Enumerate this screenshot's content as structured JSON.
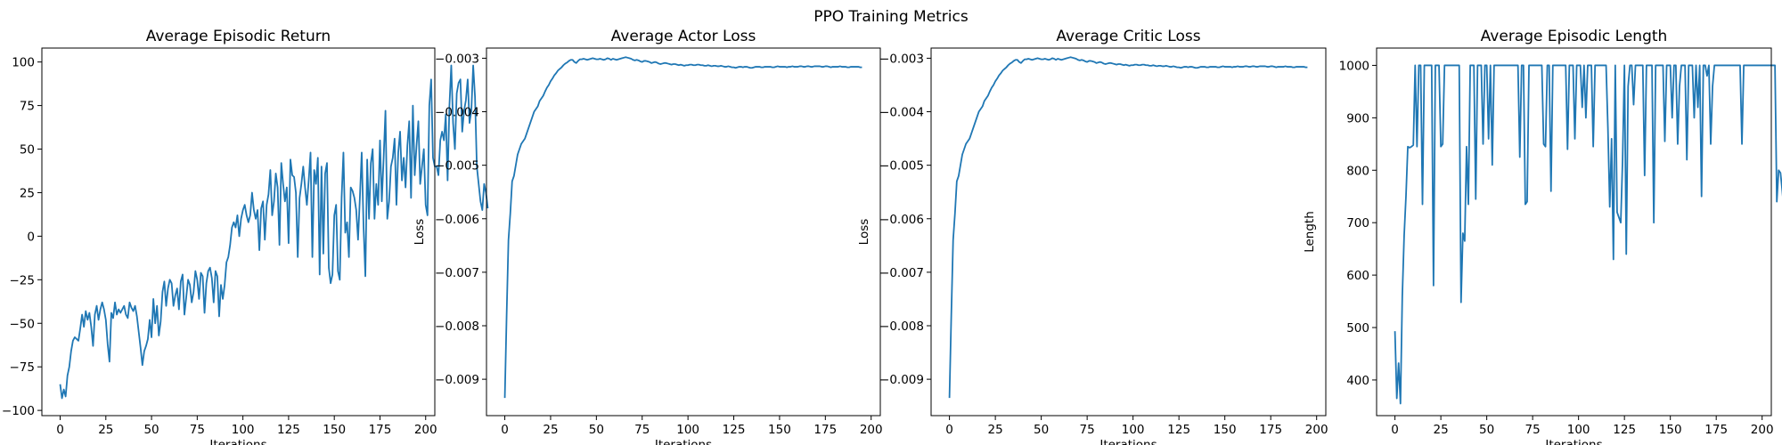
{
  "figure": {
    "title": "PPO Training Metrics"
  },
  "colors": {
    "line": "#1f77b4",
    "axes": "#000000",
    "background": "#ffffff"
  },
  "chart_data": [
    {
      "type": "line",
      "title": "Average Episodic Return",
      "xlabel": "Iterations",
      "ylabel": "",
      "xlim": [
        -10,
        205
      ],
      "ylim": [
        -103,
        108
      ],
      "grid": false,
      "x_ticks": [
        0,
        25,
        50,
        75,
        100,
        125,
        150,
        175,
        200
      ],
      "y_ticks": [
        -100,
        -75,
        -50,
        -25,
        0,
        25,
        50,
        75,
        100
      ],
      "y_tick_labels": [
        "−100",
        "−75",
        "−50",
        "−25",
        "0",
        "25",
        "50",
        "75",
        "100"
      ],
      "x_start": 0,
      "x_step": 1,
      "values": [
        -85,
        -93,
        -88,
        -92,
        -80,
        -75,
        -66,
        -60,
        -58,
        -59,
        -60,
        -53,
        -45,
        -52,
        -43,
        -48,
        -44,
        -52,
        -63,
        -45,
        -40,
        -48,
        -42,
        -38,
        -42,
        -48,
        -62,
        -72,
        -44,
        -47,
        -38,
        -45,
        -42,
        -44,
        -42,
        -40,
        -45,
        -47,
        -38,
        -41,
        -43,
        -40,
        -46,
        -55,
        -64,
        -74,
        -66,
        -63,
        -59,
        -48,
        -58,
        -36,
        -50,
        -40,
        -57,
        -49,
        -32,
        -26,
        -40,
        -30,
        -25,
        -27,
        -40,
        -34,
        -30,
        -42,
        -26,
        -22,
        -45,
        -35,
        -25,
        -28,
        -38,
        -32,
        -20,
        -25,
        -36,
        -21,
        -23,
        -44,
        -27,
        -20,
        -18,
        -24,
        -38,
        -20,
        -23,
        -46,
        -28,
        -36,
        -28,
        -15,
        -12,
        -5,
        5,
        8,
        5,
        12,
        0,
        10,
        15,
        18,
        12,
        8,
        12,
        25,
        15,
        10,
        15,
        -8,
        16,
        20,
        -2,
        18,
        24,
        38,
        12,
        20,
        36,
        28,
        -5,
        42,
        30,
        20,
        28,
        -4,
        44,
        35,
        34,
        25,
        -12,
        22,
        30,
        40,
        28,
        18,
        32,
        48,
        -12,
        38,
        30,
        45,
        -22,
        40,
        -10,
        36,
        42,
        -18,
        -27,
        -22,
        12,
        18,
        -20,
        -25,
        22,
        48,
        2,
        8,
        -12,
        28,
        26,
        22,
        15,
        -2,
        22,
        48,
        6,
        -23,
        44,
        10,
        42,
        50,
        10,
        30,
        18,
        55,
        20,
        45,
        72,
        10,
        20,
        40,
        45,
        56,
        18,
        48,
        60,
        32,
        45,
        28,
        52,
        66,
        22,
        75,
        35,
        52,
        66,
        30,
        40,
        50,
        18,
        12,
        75,
        90,
        45,
        40,
        40,
        35,
        55,
        60,
        55,
        70,
        32,
        75,
        98,
        65,
        50,
        82,
        88,
        90,
        60,
        72,
        78,
        90,
        65,
        72,
        98,
        80,
        40,
        30,
        20,
        15,
        30,
        25,
        16
      ]
    },
    {
      "type": "line",
      "title": "Average Actor Loss",
      "xlabel": "Iterations",
      "ylabel": "Loss",
      "xlim": [
        -10,
        205
      ],
      "ylim": [
        -0.00968,
        -0.00281
      ],
      "grid": false,
      "x_ticks": [
        0,
        25,
        50,
        75,
        100,
        125,
        150,
        175,
        200
      ],
      "y_ticks": [
        -0.009,
        -0.008,
        -0.007,
        -0.006,
        -0.005,
        -0.004,
        -0.003
      ],
      "y_tick_labels": [
        "−0.009",
        "−0.008",
        "−0.007",
        "−0.006",
        "−0.005",
        "−0.004",
        "−0.003"
      ],
      "x_start": 0,
      "x_step": 1,
      "values": [
        -0.00935,
        -0.0078,
        -0.0064,
        -0.0059,
        -0.0053,
        -0.0052,
        -0.005,
        -0.0048,
        -0.0047,
        -0.0046,
        -0.00455,
        -0.0045,
        -0.0044,
        -0.0043,
        -0.0042,
        -0.0041,
        -0.004,
        -0.00395,
        -0.0039,
        -0.0038,
        -0.00375,
        -0.0037,
        -0.00362,
        -0.00355,
        -0.0035,
        -0.00343,
        -0.00338,
        -0.00332,
        -0.00328,
        -0.00323,
        -0.0032,
        -0.00317,
        -0.00313,
        -0.0031,
        -0.00308,
        -0.00305,
        -0.00303,
        -0.00303,
        -0.00307,
        -0.00309,
        -0.00305,
        -0.00302,
        -0.00302,
        -0.00301,
        -0.00302,
        -0.00303,
        -0.00302,
        -0.00301,
        -0.003,
        -0.00301,
        -0.00302,
        -0.00302,
        -0.00301,
        -0.00302,
        -0.00303,
        -0.00302,
        -0.003,
        -0.00301,
        -0.00303,
        -0.00301,
        -0.00302,
        -0.00303,
        -0.00302,
        -0.00301,
        -0.003,
        -0.00299,
        -0.00298,
        -0.00299,
        -0.003,
        -0.00301,
        -0.00303,
        -0.00304,
        -0.00303,
        -0.00304,
        -0.00306,
        -0.00307,
        -0.00305,
        -0.00305,
        -0.00306,
        -0.00307,
        -0.00309,
        -0.00308,
        -0.00307,
        -0.00308,
        -0.0031,
        -0.00311,
        -0.0031,
        -0.00309,
        -0.00309,
        -0.0031,
        -0.00311,
        -0.00312,
        -0.00311,
        -0.00311,
        -0.00312,
        -0.00313,
        -0.00312,
        -0.00313,
        -0.00314,
        -0.00313,
        -0.00313,
        -0.00312,
        -0.00312,
        -0.00313,
        -0.00313,
        -0.00312,
        -0.00312,
        -0.00313,
        -0.00313,
        -0.00314,
        -0.00314,
        -0.00313,
        -0.00314,
        -0.00315,
        -0.00314,
        -0.00314,
        -0.00315,
        -0.00315,
        -0.00314,
        -0.00315,
        -0.00316,
        -0.00316,
        -0.00315,
        -0.00316,
        -0.00317,
        -0.00317,
        -0.00318,
        -0.00317,
        -0.00316,
        -0.00316,
        -0.00317,
        -0.00316,
        -0.00316,
        -0.00317,
        -0.00318,
        -0.00318,
        -0.00317,
        -0.00316,
        -0.00316,
        -0.00316,
        -0.00317,
        -0.00317,
        -0.00316,
        -0.00316,
        -0.00316,
        -0.00316,
        -0.00317,
        -0.00317,
        -0.00316,
        -0.00315,
        -0.00316,
        -0.00316,
        -0.00316,
        -0.00316,
        -0.00317,
        -0.00316,
        -0.00316,
        -0.00315,
        -0.00316,
        -0.00316,
        -0.00316,
        -0.00315,
        -0.00315,
        -0.00316,
        -0.00316,
        -0.00315,
        -0.00315,
        -0.00316,
        -0.00316,
        -0.00315,
        -0.00315,
        -0.00315,
        -0.00315,
        -0.00316,
        -0.00316,
        -0.00315,
        -0.00315,
        -0.00316,
        -0.00317,
        -0.00316,
        -0.00316,
        -0.00316,
        -0.00316,
        -0.00315,
        -0.00316,
        -0.00316,
        -0.00316,
        -0.00317,
        -0.00317,
        -0.00316,
        -0.00316,
        -0.00316,
        -0.00316,
        -0.00316,
        -0.00317,
        -0.00317
      ]
    },
    {
      "type": "line",
      "title": "Average Critic Loss",
      "xlabel": "Iterations",
      "ylabel": "Loss",
      "xlim": [
        -10,
        205
      ],
      "ylim": [
        -0.00968,
        -0.00281
      ],
      "grid": false,
      "x_ticks": [
        0,
        25,
        50,
        75,
        100,
        125,
        150,
        175,
        200
      ],
      "y_ticks": [
        -0.009,
        -0.008,
        -0.007,
        -0.006,
        -0.005,
        -0.004,
        -0.003
      ],
      "y_tick_labels": [
        "−0.009",
        "−0.008",
        "−0.007",
        "−0.006",
        "−0.005",
        "−0.004",
        "−0.003"
      ],
      "x_start": 0,
      "x_step": 1,
      "values": [
        -0.00935,
        -0.0078,
        -0.0064,
        -0.0059,
        -0.0053,
        -0.0052,
        -0.005,
        -0.0048,
        -0.0047,
        -0.0046,
        -0.00455,
        -0.0045,
        -0.0044,
        -0.0043,
        -0.0042,
        -0.0041,
        -0.004,
        -0.00395,
        -0.0039,
        -0.0038,
        -0.00375,
        -0.0037,
        -0.00362,
        -0.00355,
        -0.0035,
        -0.00343,
        -0.00338,
        -0.00332,
        -0.00328,
        -0.00323,
        -0.0032,
        -0.00317,
        -0.00313,
        -0.0031,
        -0.00308,
        -0.00305,
        -0.00303,
        -0.00303,
        -0.00307,
        -0.00309,
        -0.00305,
        -0.00302,
        -0.00302,
        -0.00301,
        -0.00302,
        -0.00303,
        -0.00302,
        -0.00301,
        -0.003,
        -0.00301,
        -0.00302,
        -0.00302,
        -0.00301,
        -0.00302,
        -0.00303,
        -0.00302,
        -0.003,
        -0.00301,
        -0.00303,
        -0.00301,
        -0.00302,
        -0.00303,
        -0.00302,
        -0.00301,
        -0.003,
        -0.00299,
        -0.00298,
        -0.00299,
        -0.003,
        -0.00301,
        -0.00303,
        -0.00304,
        -0.00303,
        -0.00304,
        -0.00306,
        -0.00307,
        -0.00305,
        -0.00305,
        -0.00306,
        -0.00307,
        -0.00309,
        -0.00308,
        -0.00307,
        -0.00308,
        -0.0031,
        -0.00311,
        -0.0031,
        -0.00309,
        -0.00309,
        -0.0031,
        -0.00311,
        -0.00312,
        -0.00311,
        -0.00311,
        -0.00312,
        -0.00313,
        -0.00312,
        -0.00313,
        -0.00314,
        -0.00313,
        -0.00313,
        -0.00312,
        -0.00312,
        -0.00313,
        -0.00313,
        -0.00312,
        -0.00312,
        -0.00313,
        -0.00313,
        -0.00314,
        -0.00314,
        -0.00313,
        -0.00314,
        -0.00315,
        -0.00314,
        -0.00314,
        -0.00315,
        -0.00315,
        -0.00314,
        -0.00315,
        -0.00316,
        -0.00316,
        -0.00315,
        -0.00316,
        -0.00317,
        -0.00317,
        -0.00318,
        -0.00317,
        -0.00316,
        -0.00316,
        -0.00317,
        -0.00316,
        -0.00316,
        -0.00317,
        -0.00318,
        -0.00318,
        -0.00317,
        -0.00316,
        -0.00316,
        -0.00316,
        -0.00317,
        -0.00317,
        -0.00316,
        -0.00316,
        -0.00316,
        -0.00316,
        -0.00317,
        -0.00317,
        -0.00316,
        -0.00315,
        -0.00316,
        -0.00316,
        -0.00316,
        -0.00316,
        -0.00317,
        -0.00316,
        -0.00316,
        -0.00315,
        -0.00316,
        -0.00316,
        -0.00316,
        -0.00315,
        -0.00315,
        -0.00316,
        -0.00316,
        -0.00315,
        -0.00315,
        -0.00316,
        -0.00316,
        -0.00315,
        -0.00315,
        -0.00315,
        -0.00315,
        -0.00316,
        -0.00316,
        -0.00315,
        -0.00315,
        -0.00316,
        -0.00317,
        -0.00316,
        -0.00316,
        -0.00316,
        -0.00316,
        -0.00315,
        -0.00316,
        -0.00316,
        -0.00316,
        -0.00317,
        -0.00317,
        -0.00316,
        -0.00316,
        -0.00316,
        -0.00316,
        -0.00316,
        -0.00317,
        -0.00317
      ]
    },
    {
      "type": "line",
      "title": "Average Episodic Length",
      "xlabel": "Iterations",
      "ylabel": "Length",
      "xlim": [
        -10,
        205
      ],
      "ylim": [
        332,
        1033
      ],
      "grid": false,
      "x_ticks": [
        0,
        25,
        50,
        75,
        100,
        125,
        150,
        175,
        200
      ],
      "y_ticks": [
        400,
        500,
        600,
        700,
        800,
        900,
        1000
      ],
      "y_tick_labels": [
        "400",
        "500",
        "600",
        "700",
        "800",
        "900",
        "1000"
      ],
      "x_start": 0,
      "x_step": 1,
      "values": [
        493,
        365,
        432,
        355,
        560,
        675,
        750,
        845,
        843,
        845,
        848,
        1000,
        845,
        1000,
        1000,
        735,
        1000,
        1000,
        1000,
        1000,
        1000,
        580,
        1000,
        1000,
        1000,
        845,
        850,
        1000,
        1000,
        1000,
        1000,
        1000,
        1000,
        1000,
        1000,
        1000,
        548,
        680,
        665,
        845,
        735,
        1000,
        1000,
        1000,
        745,
        1000,
        1000,
        1000,
        850,
        1000,
        1000,
        860,
        1000,
        810,
        1000,
        1000,
        1000,
        1000,
        1000,
        1000,
        1000,
        1000,
        1000,
        1000,
        1000,
        1000,
        1000,
        1000,
        825,
        1000,
        1000,
        735,
        740,
        1000,
        1000,
        1000,
        1000,
        1000,
        1000,
        1000,
        1000,
        850,
        845,
        1000,
        1000,
        760,
        1000,
        1000,
        1000,
        1000,
        1000,
        1000,
        1000,
        1000,
        840,
        1000,
        1000,
        1000,
        860,
        1000,
        1000,
        1000,
        920,
        1000,
        900,
        1000,
        1000,
        1000,
        845,
        1000,
        1000,
        1000,
        1000,
        1000,
        1000,
        1000,
        880,
        730,
        860,
        630,
        1000,
        720,
        710,
        700,
        820,
        1000,
        640,
        960,
        1000,
        1000,
        925,
        1000,
        1000,
        1000,
        1000,
        1000,
        790,
        1000,
        1000,
        1000,
        1000,
        700,
        1000,
        1000,
        1000,
        1000,
        1000,
        855,
        1000,
        1000,
        1000,
        900,
        1000,
        1000,
        850,
        960,
        1000,
        1000,
        1000,
        820,
        1000,
        1000,
        1000,
        900,
        1000,
        920,
        1000,
        750,
        1000,
        1000,
        980,
        1000,
        850,
        960,
        1000,
        1000,
        1000,
        1000,
        1000,
        1000,
        1000,
        1000,
        1000,
        1000,
        1000,
        1000,
        1000,
        1000,
        1000,
        850,
        1000,
        1000,
        1000,
        1000,
        1000,
        1000,
        1000,
        1000,
        1000,
        1000,
        1000,
        1000,
        1000,
        1000,
        1000,
        1000,
        1000,
        1000,
        740,
        800,
        795,
        760,
        720
      ]
    }
  ]
}
